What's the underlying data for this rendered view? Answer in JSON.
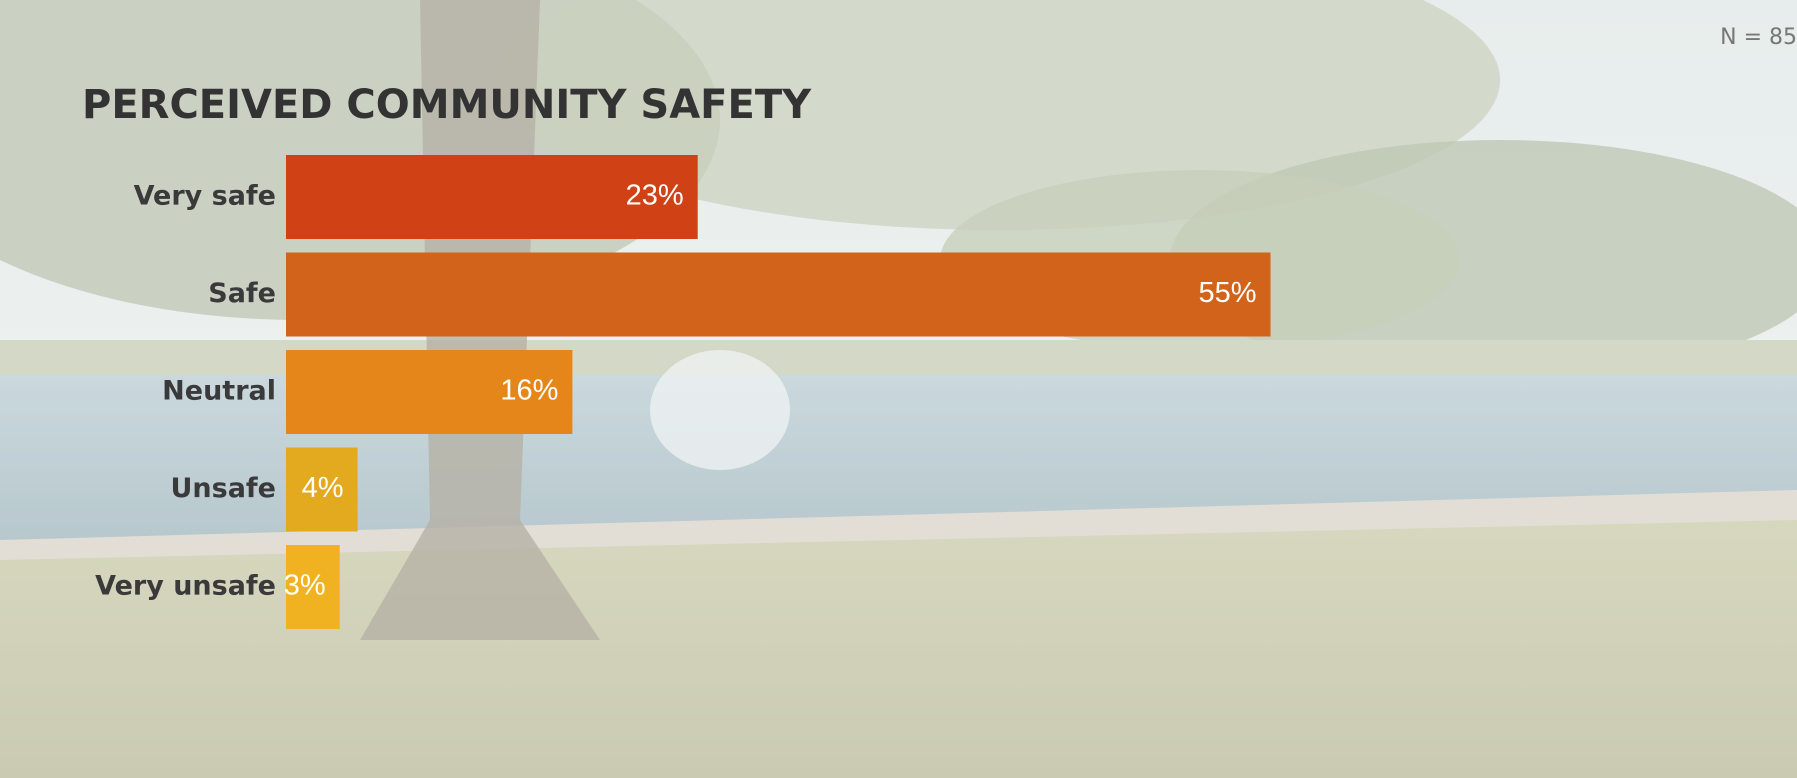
{
  "chart_data": {
    "type": "bar",
    "orientation": "horizontal",
    "title": "PERCEIVED COMMUNITY SAFETY",
    "note": "N = 85",
    "categories": [
      "Very safe",
      "Safe",
      "Neutral",
      "Unsafe",
      "Very unsafe"
    ],
    "values": [
      23,
      55,
      16,
      4,
      3
    ],
    "value_labels": [
      "23%",
      "55%",
      "16%",
      "4%",
      "3%"
    ],
    "colors": [
      "#d04116",
      "#d2631a",
      "#e5861b",
      "#e3a91f",
      "#f1b221"
    ]
  }
}
